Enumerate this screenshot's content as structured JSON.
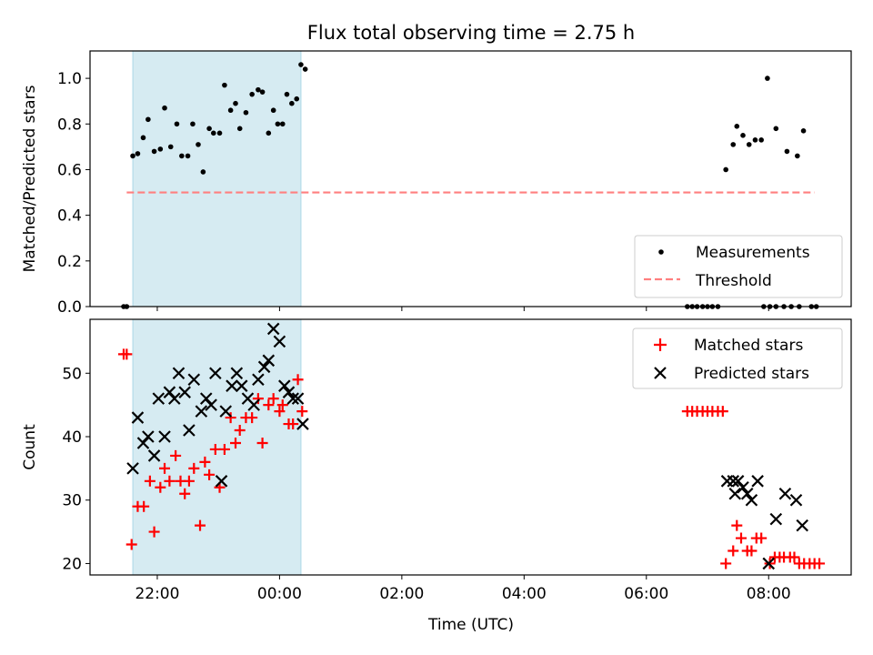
{
  "figure": {
    "title": "Flux total observing time = 2.75 h",
    "xlabel": "Time (UTC)",
    "x_tick_labels": [
      "22:00",
      "00:00",
      "02:00",
      "04:00",
      "06:00",
      "08:00"
    ],
    "x_tick_hours": [
      22,
      24,
      26,
      28,
      30,
      32
    ],
    "shade_span": [
      21.6,
      24.35
    ],
    "shade_color": "#add8e6"
  },
  "chart_data": [
    {
      "type": "scatter",
      "ylabel": "Matched/Predicted stars",
      "xlim": [
        20.9,
        33.35
      ],
      "ylim": [
        0.0,
        1.12
      ],
      "y_ticks": [
        0.0,
        0.2,
        0.4,
        0.6,
        0.8,
        1.0
      ],
      "y_tick_labels": [
        "0.0",
        "0.2",
        "0.4",
        "0.6",
        "0.8",
        "1.0"
      ],
      "grid": false,
      "legend_position": "lower-right",
      "threshold": {
        "name": "Threshold",
        "y": 0.5,
        "x_range": [
          21.5,
          32.75
        ],
        "color": "#ff7f7f"
      },
      "series": [
        {
          "name": "Measurements",
          "color": "#000000",
          "marker": "dot",
          "points": [
            [
              21.45,
              0.0
            ],
            [
              21.5,
              0.0
            ],
            [
              21.6,
              0.66
            ],
            [
              21.68,
              0.67
            ],
            [
              21.77,
              0.74
            ],
            [
              21.85,
              0.82
            ],
            [
              21.95,
              0.68
            ],
            [
              22.05,
              0.69
            ],
            [
              22.12,
              0.87
            ],
            [
              22.22,
              0.7
            ],
            [
              22.32,
              0.8
            ],
            [
              22.4,
              0.66
            ],
            [
              22.5,
              0.66
            ],
            [
              22.58,
              0.8
            ],
            [
              22.67,
              0.71
            ],
            [
              22.75,
              0.59
            ],
            [
              22.85,
              0.78
            ],
            [
              22.92,
              0.76
            ],
            [
              23.02,
              0.76
            ],
            [
              23.1,
              0.97
            ],
            [
              23.2,
              0.86
            ],
            [
              23.28,
              0.89
            ],
            [
              23.35,
              0.78
            ],
            [
              23.45,
              0.85
            ],
            [
              23.55,
              0.93
            ],
            [
              23.65,
              0.95
            ],
            [
              23.72,
              0.94
            ],
            [
              23.82,
              0.76
            ],
            [
              23.9,
              0.86
            ],
            [
              23.97,
              0.8
            ],
            [
              24.05,
              0.8
            ],
            [
              24.12,
              0.93
            ],
            [
              24.2,
              0.89
            ],
            [
              24.28,
              0.91
            ],
            [
              24.35,
              1.06
            ],
            [
              24.42,
              1.04
            ],
            [
              31.3,
              0.6
            ],
            [
              31.42,
              0.71
            ],
            [
              31.48,
              0.79
            ],
            [
              31.58,
              0.75
            ],
            [
              31.68,
              0.71
            ],
            [
              31.78,
              0.73
            ],
            [
              31.88,
              0.73
            ],
            [
              31.98,
              1.0
            ],
            [
              32.12,
              0.78
            ],
            [
              32.3,
              0.68
            ],
            [
              32.47,
              0.66
            ],
            [
              32.57,
              0.77
            ],
            [
              30.67,
              0.0
            ],
            [
              30.75,
              0.0
            ],
            [
              30.83,
              0.0
            ],
            [
              30.92,
              0.0
            ],
            [
              31.0,
              0.0
            ],
            [
              31.08,
              0.0
            ],
            [
              31.17,
              0.0
            ],
            [
              31.92,
              0.0
            ],
            [
              32.02,
              0.0
            ],
            [
              32.12,
              0.0
            ],
            [
              32.25,
              0.0
            ],
            [
              32.37,
              0.0
            ],
            [
              32.5,
              0.0
            ],
            [
              32.7,
              0.0
            ],
            [
              32.78,
              0.0
            ]
          ]
        }
      ]
    },
    {
      "type": "scatter",
      "ylabel": "Count",
      "xlim": [
        20.9,
        33.35
      ],
      "ylim": [
        18.2,
        58.5
      ],
      "y_ticks": [
        20,
        30,
        40,
        50
      ],
      "y_tick_labels": [
        "20",
        "30",
        "40",
        "50"
      ],
      "grid": false,
      "legend_position": "upper-right",
      "series": [
        {
          "name": "Matched stars",
          "color": "#ff0000",
          "marker": "plus",
          "points": [
            [
              21.45,
              53
            ],
            [
              21.5,
              53
            ],
            [
              21.58,
              23
            ],
            [
              21.68,
              29
            ],
            [
              21.78,
              29
            ],
            [
              21.88,
              33
            ],
            [
              21.95,
              25
            ],
            [
              22.05,
              32
            ],
            [
              22.12,
              35
            ],
            [
              22.2,
              33
            ],
            [
              22.3,
              37
            ],
            [
              22.38,
              33
            ],
            [
              22.45,
              31
            ],
            [
              22.52,
              33
            ],
            [
              22.6,
              35
            ],
            [
              22.7,
              26
            ],
            [
              22.78,
              36
            ],
            [
              22.85,
              34
            ],
            [
              22.95,
              38
            ],
            [
              23.02,
              32
            ],
            [
              23.1,
              38
            ],
            [
              23.2,
              43
            ],
            [
              23.28,
              39
            ],
            [
              23.35,
              41
            ],
            [
              23.45,
              43
            ],
            [
              23.55,
              43
            ],
            [
              23.65,
              46
            ],
            [
              23.72,
              39
            ],
            [
              23.82,
              45
            ],
            [
              23.9,
              46
            ],
            [
              24.0,
              44
            ],
            [
              24.05,
              45
            ],
            [
              24.15,
              42
            ],
            [
              24.22,
              42
            ],
            [
              24.3,
              49
            ],
            [
              24.37,
              44
            ],
            [
              30.67,
              44
            ],
            [
              30.75,
              44
            ],
            [
              30.83,
              44
            ],
            [
              30.92,
              44
            ],
            [
              31.0,
              44
            ],
            [
              31.08,
              44
            ],
            [
              31.17,
              44
            ],
            [
              31.25,
              44
            ],
            [
              31.3,
              20
            ],
            [
              31.42,
              22
            ],
            [
              31.48,
              26
            ],
            [
              31.55,
              24
            ],
            [
              31.65,
              22
            ],
            [
              31.72,
              22
            ],
            [
              31.8,
              24
            ],
            [
              31.88,
              24
            ],
            [
              32.02,
              20
            ],
            [
              32.1,
              21
            ],
            [
              32.18,
              21
            ],
            [
              32.25,
              21
            ],
            [
              32.35,
              21
            ],
            [
              32.42,
              21
            ],
            [
              32.5,
              20
            ],
            [
              32.58,
              20
            ],
            [
              32.67,
              20
            ],
            [
              32.75,
              20
            ],
            [
              32.83,
              20
            ]
          ]
        },
        {
          "name": "Predicted stars",
          "color": "#000000",
          "marker": "x",
          "points": [
            [
              21.6,
              35
            ],
            [
              21.68,
              43
            ],
            [
              21.77,
              39
            ],
            [
              21.85,
              40
            ],
            [
              21.95,
              37
            ],
            [
              22.02,
              46
            ],
            [
              22.12,
              40
            ],
            [
              22.2,
              47
            ],
            [
              22.28,
              46
            ],
            [
              22.35,
              50
            ],
            [
              22.45,
              47
            ],
            [
              22.52,
              41
            ],
            [
              22.6,
              49
            ],
            [
              22.72,
              44
            ],
            [
              22.8,
              46
            ],
            [
              22.88,
              45
            ],
            [
              22.95,
              50
            ],
            [
              23.05,
              33
            ],
            [
              23.12,
              44
            ],
            [
              23.22,
              48
            ],
            [
              23.3,
              50
            ],
            [
              23.38,
              48
            ],
            [
              23.48,
              46
            ],
            [
              23.58,
              45
            ],
            [
              23.65,
              49
            ],
            [
              23.75,
              51
            ],
            [
              23.82,
              52
            ],
            [
              23.9,
              57
            ],
            [
              24.0,
              55
            ],
            [
              24.08,
              48
            ],
            [
              24.15,
              47
            ],
            [
              24.22,
              46
            ],
            [
              24.3,
              46
            ],
            [
              24.38,
              42
            ],
            [
              31.32,
              33
            ],
            [
              31.42,
              33
            ],
            [
              31.45,
              31
            ],
            [
              31.5,
              33
            ],
            [
              31.58,
              32
            ],
            [
              31.65,
              31
            ],
            [
              31.72,
              30
            ],
            [
              31.82,
              33
            ],
            [
              32.0,
              20
            ],
            [
              32.12,
              27
            ],
            [
              32.27,
              31
            ],
            [
              32.45,
              30
            ],
            [
              32.55,
              26
            ]
          ]
        }
      ]
    }
  ]
}
